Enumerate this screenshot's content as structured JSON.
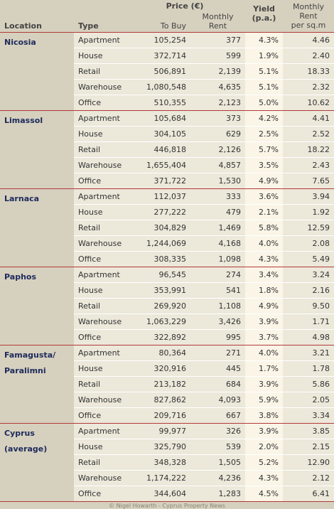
{
  "header": {
    "location": "Location",
    "type": "Type",
    "price": "Price (€)",
    "to_buy": "To Buy",
    "monthly_rent": "Monthly\nRent",
    "yield": "Yield\n(p.a.)",
    "rent_sqm": "Monthly\nRent\nper sq.m"
  },
  "groups": [
    {
      "location": "Nicosia",
      "rows": [
        [
          "Apartment",
          "105,254",
          "377",
          "4.3%",
          "4.46"
        ],
        [
          "House",
          "372,714",
          "599",
          "1.9%",
          "2.40"
        ],
        [
          "Retail",
          "506,891",
          "2,139",
          "5.1%",
          "18.33"
        ],
        [
          "Warehouse",
          "1,080,548",
          "4,635",
          "5.1%",
          "2.32"
        ],
        [
          "Office",
          "510,355",
          "2,123",
          "5.0%",
          "10.62"
        ]
      ]
    },
    {
      "location": "Limassol",
      "rows": [
        [
          "Apartment",
          "105,684",
          "373",
          "4.2%",
          "4.41"
        ],
        [
          "House",
          "304,105",
          "629",
          "2.5%",
          "2.52"
        ],
        [
          "Retail",
          "446,818",
          "2,126",
          "5.7%",
          "18.22"
        ],
        [
          "Warehouse",
          "1,655,404",
          "4,857",
          "3.5%",
          "2.43"
        ],
        [
          "Office",
          "371,722",
          "1,530",
          "4.9%",
          "7.65"
        ]
      ]
    },
    {
      "location": "Larnaca",
      "rows": [
        [
          "Apartment",
          "112,037",
          "333",
          "3.6%",
          "3.94"
        ],
        [
          "House",
          "277,222",
          "479",
          "2.1%",
          "1.92"
        ],
        [
          "Retail",
          "304,829",
          "1,469",
          "5.8%",
          "12.59"
        ],
        [
          "Warehouse",
          "1,244,069",
          "4,168",
          "4.0%",
          "2.08"
        ],
        [
          "Office",
          "308,335",
          "1,098",
          "4.3%",
          "5.49"
        ]
      ]
    },
    {
      "location": "Paphos",
      "rows": [
        [
          "Apartment",
          "96,545",
          "274",
          "3.4%",
          "3.24"
        ],
        [
          "House",
          "353,991",
          "541",
          "1.8%",
          "2.16"
        ],
        [
          "Retail",
          "269,920",
          "1,108",
          "4.9%",
          "9.50"
        ],
        [
          "Warehouse",
          "1,063,229",
          "3,426",
          "3.9%",
          "1.71"
        ],
        [
          "Office",
          "322,892",
          "995",
          "3.7%",
          "4.98"
        ]
      ]
    },
    {
      "location": "Famagusta/\nParalimni",
      "rows": [
        [
          "Apartment",
          "80,364",
          "271",
          "4.0%",
          "3.21"
        ],
        [
          "House",
          "320,916",
          "445",
          "1.7%",
          "1.78"
        ],
        [
          "Retail",
          "213,182",
          "684",
          "3.9%",
          "5.86"
        ],
        [
          "Warehouse",
          "827,862",
          "4,093",
          "5.9%",
          "2.05"
        ],
        [
          "Office",
          "209,716",
          "667",
          "3.8%",
          "3.34"
        ]
      ]
    },
    {
      "location": "Cyprus\n(average)",
      "rows": [
        [
          "Apartment",
          "99,977",
          "326",
          "3.9%",
          "3.85"
        ],
        [
          "House",
          "325,790",
          "539",
          "2.0%",
          "2.15"
        ],
        [
          "Retail",
          "348,328",
          "1,505",
          "5.2%",
          "12.90"
        ],
        [
          "Warehouse",
          "1,174,222",
          "4,236",
          "4.3%",
          "2.12"
        ],
        [
          "Office",
          "344,604",
          "1,283",
          "4.5%",
          "6.41"
        ]
      ]
    }
  ],
  "footer": "© Nigel Howarth - Cyprus Property News"
}
